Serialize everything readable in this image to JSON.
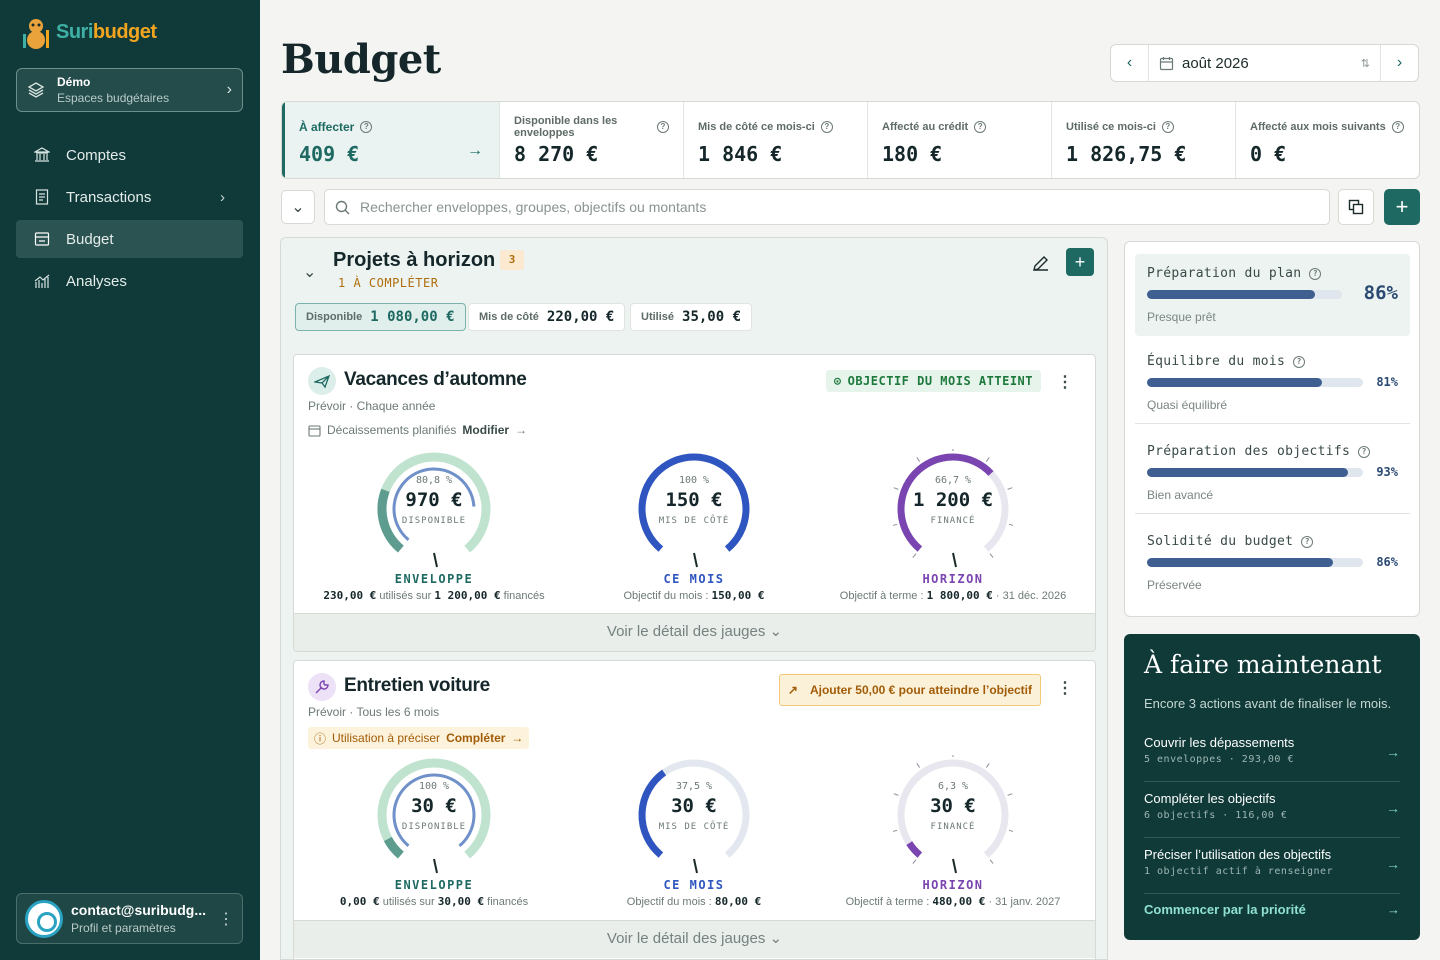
{
  "app": {
    "name_a": "Suri",
    "name_b": "budget"
  },
  "space": {
    "name": "Démo",
    "subtitle": "Espaces budgétaires"
  },
  "nav": [
    {
      "label": "Comptes",
      "icon": "bank-icon"
    },
    {
      "label": "Transactions",
      "icon": "receipt-icon"
    },
    {
      "label": "Budget",
      "icon": "wallet-icon"
    },
    {
      "label": "Analyses",
      "icon": "chart-icon"
    }
  ],
  "profile": {
    "email": "contact@suribudg...",
    "subtitle": "Profil et paramètres"
  },
  "page": {
    "title": "Budget",
    "month": "août 2026"
  },
  "stats": [
    {
      "label": "À affecter",
      "value": "409  €"
    },
    {
      "label": "Disponible dans les enveloppes",
      "value": "8 270  €"
    },
    {
      "label": "Mis de côté ce mois-ci",
      "value": "1 846  €"
    },
    {
      "label": "Affecté au crédit",
      "value": "180  €"
    },
    {
      "label": "Utilisé ce mois-ci",
      "value": "1 826,75  €"
    },
    {
      "label": "Affecté aux mois suivants",
      "value": "0  €"
    }
  ],
  "search": {
    "placeholder": "Rechercher enveloppes, groupes, objectifs ou montants"
  },
  "group": {
    "title": "Projets à horizon",
    "count": "3",
    "subtitle": "1 À COMPLÉTER",
    "chips": [
      {
        "label": "Disponible",
        "value": "1 080,00  €"
      },
      {
        "label": "Mis de côté",
        "value": "220,00  €"
      },
      {
        "label": "Utilisé",
        "value": "35,00  €"
      }
    ]
  },
  "envelopes": [
    {
      "title": "Vacances d’automne",
      "subtitle": "Prévoir · Chaque année",
      "status": "OBJECTIF DU MOIS ATTEINT",
      "meta": "Décaissements planifiés",
      "meta_action": "Modifier",
      "gauges": [
        {
          "pct": "80,8 %",
          "amount": "970  €",
          "caption": "DISPONIBLE",
          "kind": "ENVELOPPE",
          "foot_a": "230,00  €",
          "foot_b": " utilisés sur ",
          "foot_c": "1 200,00  €",
          "foot_d": " financés",
          "fill": 0.808
        },
        {
          "pct": "100 %",
          "amount": "150  €",
          "caption": "MIS DE CÔTÉ",
          "kind": "CE MOIS",
          "foot_a": "",
          "foot_b": "Objectif du mois : ",
          "foot_c": "150,00  €",
          "foot_d": "",
          "fill": 1.0
        },
        {
          "pct": "66,7 %",
          "amount": "1 200  €",
          "caption": "FINANCÉ",
          "kind": "HORIZON",
          "foot_a": "",
          "foot_b": "Objectif à terme : ",
          "foot_c": "1 800,00  €",
          "foot_d": " · 31 déc. 2026",
          "fill": 0.667
        }
      ]
    },
    {
      "title": "Entretien voiture",
      "subtitle": "Prévoir · Tous les 6 mois",
      "warning": "Ajouter 50,00 € pour atteindre l’objectif",
      "meta": "Utilisation à préciser",
      "meta_action": "Compléter",
      "gauges": [
        {
          "pct": "100 %",
          "amount": "30  €",
          "caption": "DISPONIBLE",
          "kind": "ENVELOPPE",
          "foot_a": "0,00  €",
          "foot_b": " utilisés sur ",
          "foot_c": "30,00  €",
          "foot_d": " financés",
          "fill": 1.0
        },
        {
          "pct": "37,5 %",
          "amount": "30  €",
          "caption": "MIS DE CÔTÉ",
          "kind": "CE MOIS",
          "foot_a": "",
          "foot_b": "Objectif du mois : ",
          "foot_c": "80,00  €",
          "foot_d": "",
          "fill": 0.375
        },
        {
          "pct": "6,3 %",
          "amount": "30  €",
          "caption": "FINANCÉ",
          "kind": "HORIZON",
          "foot_a": "",
          "foot_b": "Objectif à terme : ",
          "foot_c": "480,00  €",
          "foot_d": " · 31 janv. 2027",
          "fill": 0.063
        }
      ]
    }
  ],
  "detail_label": "Voir le détail des jauges",
  "health": [
    {
      "title": "Préparation du plan",
      "pct": "86%",
      "sub": "Presque prêt",
      "fill": 0.86
    },
    {
      "title": "Équilibre du mois",
      "pct": "81%",
      "sub": "Quasi équilibré",
      "fill": 0.81
    },
    {
      "title": "Préparation des objectifs",
      "pct": "93%",
      "sub": "Bien avancé",
      "fill": 0.93
    },
    {
      "title": "Solidité du budget",
      "pct": "86%",
      "sub": "Préservée",
      "fill": 0.86
    }
  ],
  "todo": {
    "title": "À faire maintenant",
    "subtitle": "Encore 3 actions avant de finaliser le mois.",
    "items": [
      {
        "label": "Couvrir les dépassements",
        "detail": "5 enveloppes · 293,00 €"
      },
      {
        "label": "Compléter les objectifs",
        "detail": "6 objectifs · 116,00 €"
      },
      {
        "label": "Préciser l’utilisation des objectifs",
        "detail": "1 objectif actif à renseigner"
      }
    ],
    "cta": "Commencer par la priorité"
  },
  "colors": {
    "sidebar": "#103a39",
    "accent": "#1e6a63",
    "horizon": "#7a45b0",
    "month": "#2f56c0",
    "envelope": "#1e6a63"
  }
}
